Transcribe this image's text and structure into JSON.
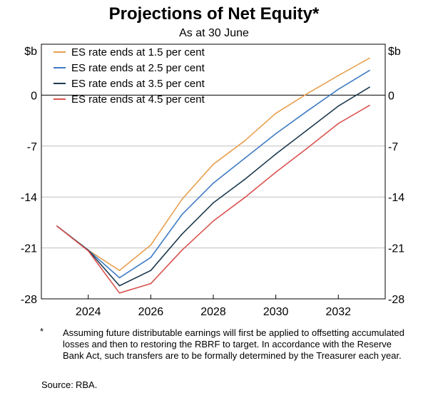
{
  "chart_data": {
    "type": "line",
    "title": "Projections of Net Equity*",
    "subtitle": "As at 30 June",
    "ylabel_left": "$b",
    "ylabel_right": "$b",
    "xlim": [
      2022.5,
      2033.5
    ],
    "ylim": [
      -28,
      7
    ],
    "yticks": [
      0,
      -7,
      -14,
      -21,
      -28
    ],
    "xticks": [
      2024,
      2026,
      2028,
      2030,
      2032
    ],
    "grid": true,
    "legend_position": "top-left",
    "series": [
      {
        "name": "ES rate ends at 1.5 per cent",
        "color": "#E8A04F",
        "x": [
          2023,
          2024,
          2025,
          2026,
          2027,
          2028,
          2029,
          2030,
          2031,
          2032,
          2033
        ],
        "y": [
          -18,
          -21.3,
          -24.1,
          -20.6,
          -14.3,
          -9.5,
          -6.3,
          -2.5,
          0.2,
          2.7,
          5.1
        ]
      },
      {
        "name": "ES rate ends at 2.5 per cent",
        "color": "#3F7BC4",
        "x": [
          2023,
          2024,
          2025,
          2026,
          2027,
          2028,
          2029,
          2030,
          2031,
          2032,
          2033
        ],
        "y": [
          -18,
          -21.3,
          -25.1,
          -22.3,
          -16.4,
          -12.1,
          -8.7,
          -5.3,
          -2.2,
          0.8,
          3.4
        ]
      },
      {
        "name": "ES rate ends at 3.5 per cent",
        "color": "#1D3A4F",
        "x": [
          2023,
          2024,
          2025,
          2026,
          2027,
          2028,
          2029,
          2030,
          2031,
          2032,
          2033
        ],
        "y": [
          -18,
          -21.3,
          -26.2,
          -24.1,
          -19.1,
          -14.8,
          -11.6,
          -8.1,
          -4.8,
          -1.5,
          1.1
        ]
      },
      {
        "name": "ES rate ends at 4.5 per cent",
        "color": "#D9534F",
        "x": [
          2023,
          2024,
          2025,
          2026,
          2027,
          2028,
          2029,
          2030,
          2031,
          2032,
          2033
        ],
        "y": [
          -18,
          -21.4,
          -27.2,
          -25.9,
          -21.3,
          -17.3,
          -14.1,
          -10.6,
          -7.3,
          -3.9,
          -1.4
        ]
      }
    ]
  },
  "footnote": {
    "marker": "*",
    "text": "Assuming future distributable earnings will first be applied to offsetting accumulated losses and then to restoring the RBRF to target. In accordance with the Reserve Bank Act, such transfers are to be formally determined by the Treasurer each year."
  },
  "source": {
    "label": "Source:",
    "value": "RBA."
  }
}
